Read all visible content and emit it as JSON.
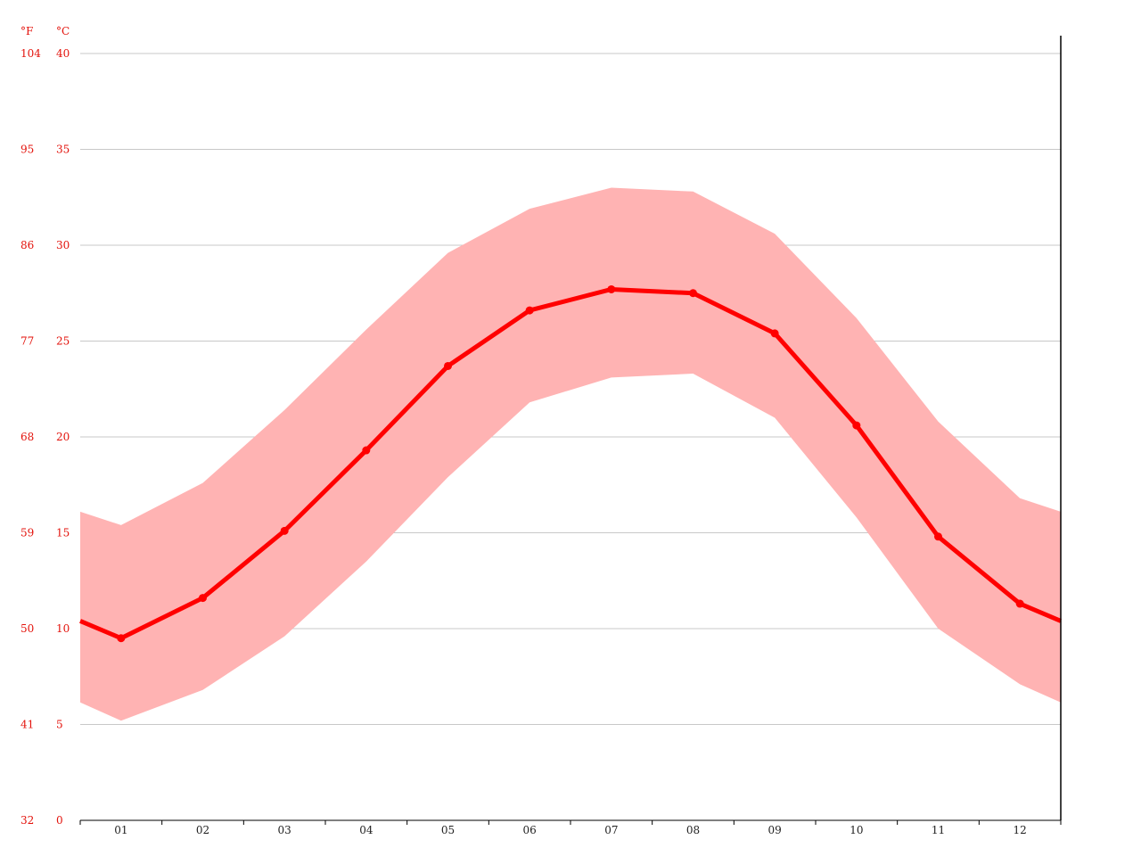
{
  "chart_data": {
    "type": "line",
    "title": "",
    "xlabel": "",
    "ylabel": "",
    "units": {
      "fahrenheit": "°F",
      "celsius": "°C"
    },
    "categories": [
      "01",
      "02",
      "03",
      "04",
      "05",
      "06",
      "07",
      "08",
      "09",
      "10",
      "11",
      "12"
    ],
    "x_domain": [
      0.5,
      12.5
    ],
    "ylim": [
      0,
      40
    ],
    "y_ticks_c": [
      "0",
      "5",
      "10",
      "15",
      "20",
      "25",
      "30",
      "35",
      "40"
    ],
    "y_ticks_f": [
      "32",
      "41",
      "50",
      "59",
      "68",
      "77",
      "86",
      "95",
      "104"
    ],
    "grid": true,
    "series": [
      {
        "values": [
          9.5,
          11.6,
          15.1,
          19.3,
          23.7,
          26.6,
          27.7,
          27.5,
          25.4,
          20.6,
          14.8,
          11.3
        ]
      }
    ],
    "band": {
      "high": [
        15.4,
        17.6,
        21.4,
        25.6,
        29.6,
        31.9,
        33.0,
        32.8,
        30.6,
        26.2,
        20.8,
        16.8
      ],
      "low": [
        5.2,
        6.8,
        9.6,
        13.5,
        17.9,
        21.8,
        23.1,
        23.3,
        21.0,
        15.8,
        10.0,
        7.1
      ]
    },
    "colors": {
      "line": "#ff0000",
      "band": "#ffb3b3",
      "grid": "#c8c8c8",
      "axis_labels": "#e3120b"
    }
  }
}
